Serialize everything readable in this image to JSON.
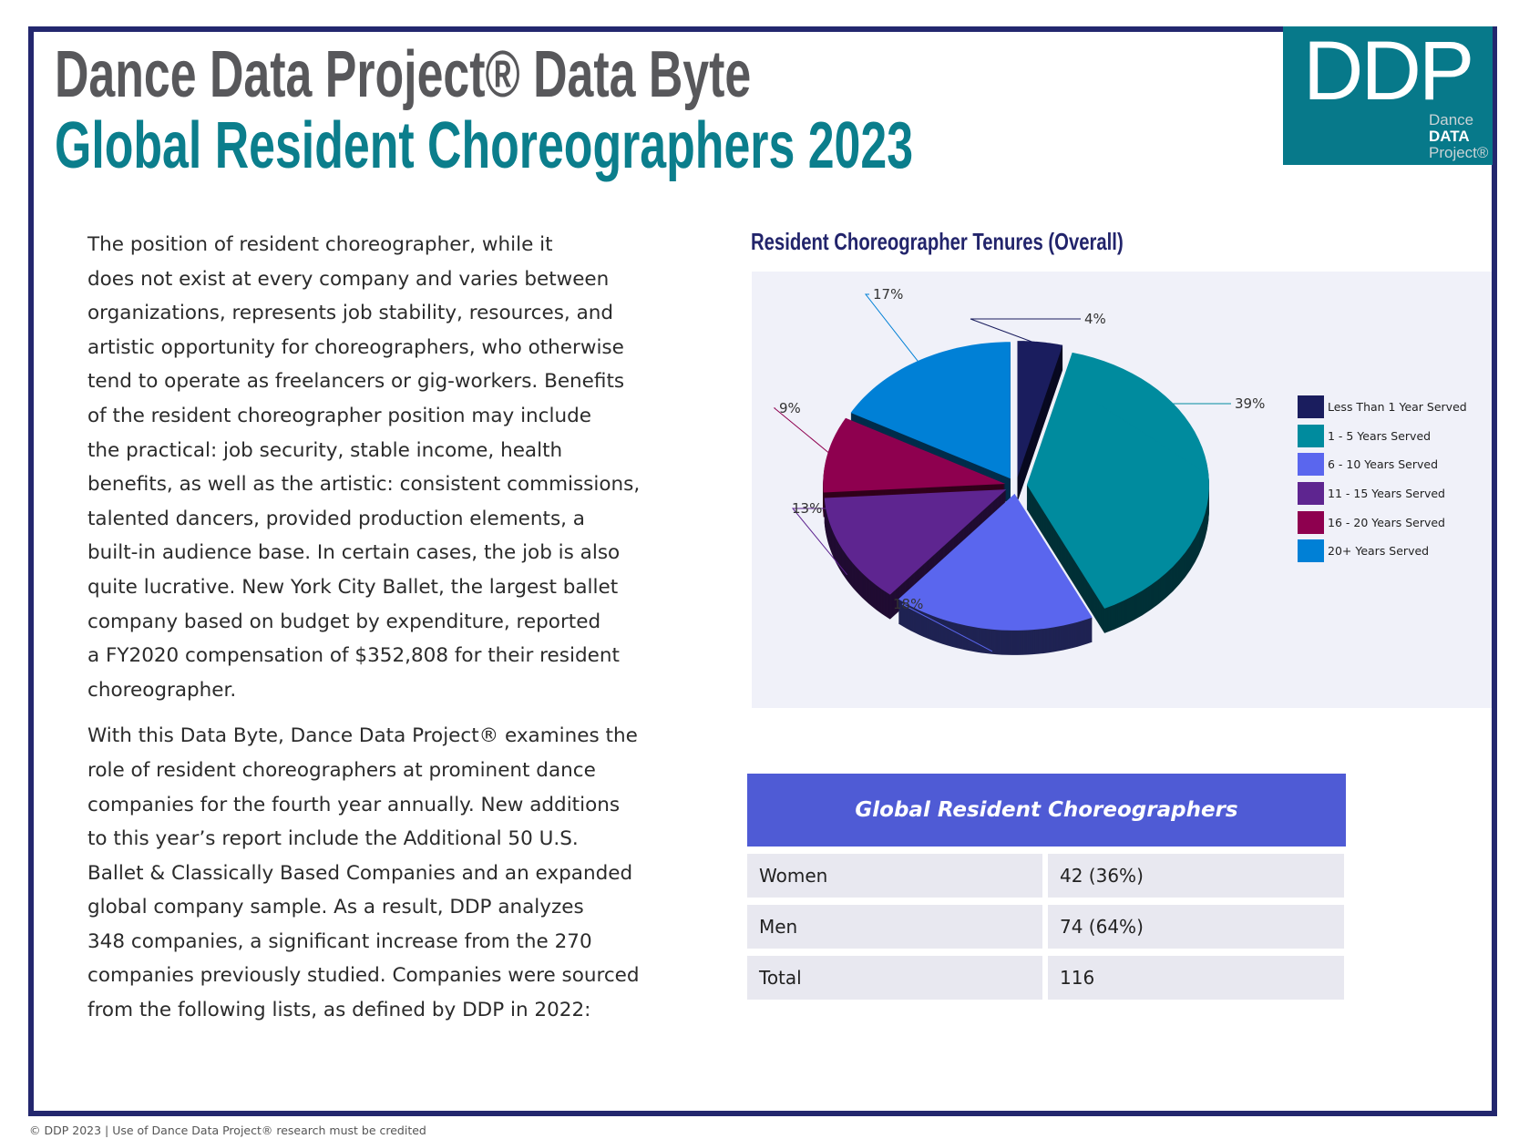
{
  "header": {
    "title": "Dance Data Project® Data Byte",
    "subtitle": "Global Resident Choreographers 2023"
  },
  "logo": {
    "letters": "DDP",
    "line1": "Dance",
    "line2": "DATA",
    "line3": "Project®"
  },
  "body": {
    "paragraph1": [
      "The position of resident choreographer, while it",
      "does not exist at every company and varies between",
      "organizations, represents job stability, resources, and",
      "artistic opportunity for choreographers, who otherwise",
      "tend to operate as freelancers or gig-workers. Benefits",
      "of the resident choreographer position may include",
      "the practical: job security, stable income, health",
      "benefits, as well as the artistic: consistent commissions,",
      "talented dancers, provided production elements, a",
      "built-in audience base. In certain cases, the job is also",
      "quite lucrative. New York City Ballet, the largest ballet",
      "company based on budget by expenditure, reported",
      "a FY2020 compensation of $352,808 for their resident",
      "choreographer."
    ],
    "paragraph2": [
      "With this Data Byte, Dance Data Project® examines the",
      "role of resident choreographers at prominent dance",
      "companies for the fourth year annually. New additions",
      "to this year’s report include the Additional 50 U.S.",
      "Ballet & Classically Based Companies and an expanded",
      "global company sample. As a result, DDP analyzes",
      "348 companies, a significant increase from the 270",
      "companies previously studied. Companies were sourced",
      "from the following lists, as defined by DDP in 2022:"
    ]
  },
  "chart_data": {
    "type": "pie",
    "title": "Resident Choreographer Tenures (Overall)",
    "style": "3d-exploded",
    "legend_position": "right",
    "categories": [
      "Less Than 1 Year Served",
      "1 - 5 Years Served",
      "6 - 10 Years Served",
      "11 - 15 Years Served",
      "16 - 20 Years Served",
      "20+ Years Served"
    ],
    "values": [
      4,
      39,
      18,
      13,
      9,
      17
    ],
    "labels": [
      "4%",
      "39%",
      "18%",
      "13%",
      "9%",
      "17%"
    ],
    "colors": [
      "#1a1d5e",
      "#008b9e",
      "#5a66ee",
      "#5e2590",
      "#8e004f",
      "#0080d6"
    ]
  },
  "table": {
    "title": "Global Resident Choreographers",
    "rows": [
      {
        "label": "Women",
        "value": "42 (36%)"
      },
      {
        "label": "Men",
        "value": "74 (64%)"
      },
      {
        "label": "Total",
        "value": "116"
      }
    ]
  },
  "colors": {
    "frame": "#23276e",
    "teal": "#07798a",
    "table_header": "#4f5bd5"
  },
  "footer": "© DDP 2023 | Use of Dance Data Project® research must be credited"
}
